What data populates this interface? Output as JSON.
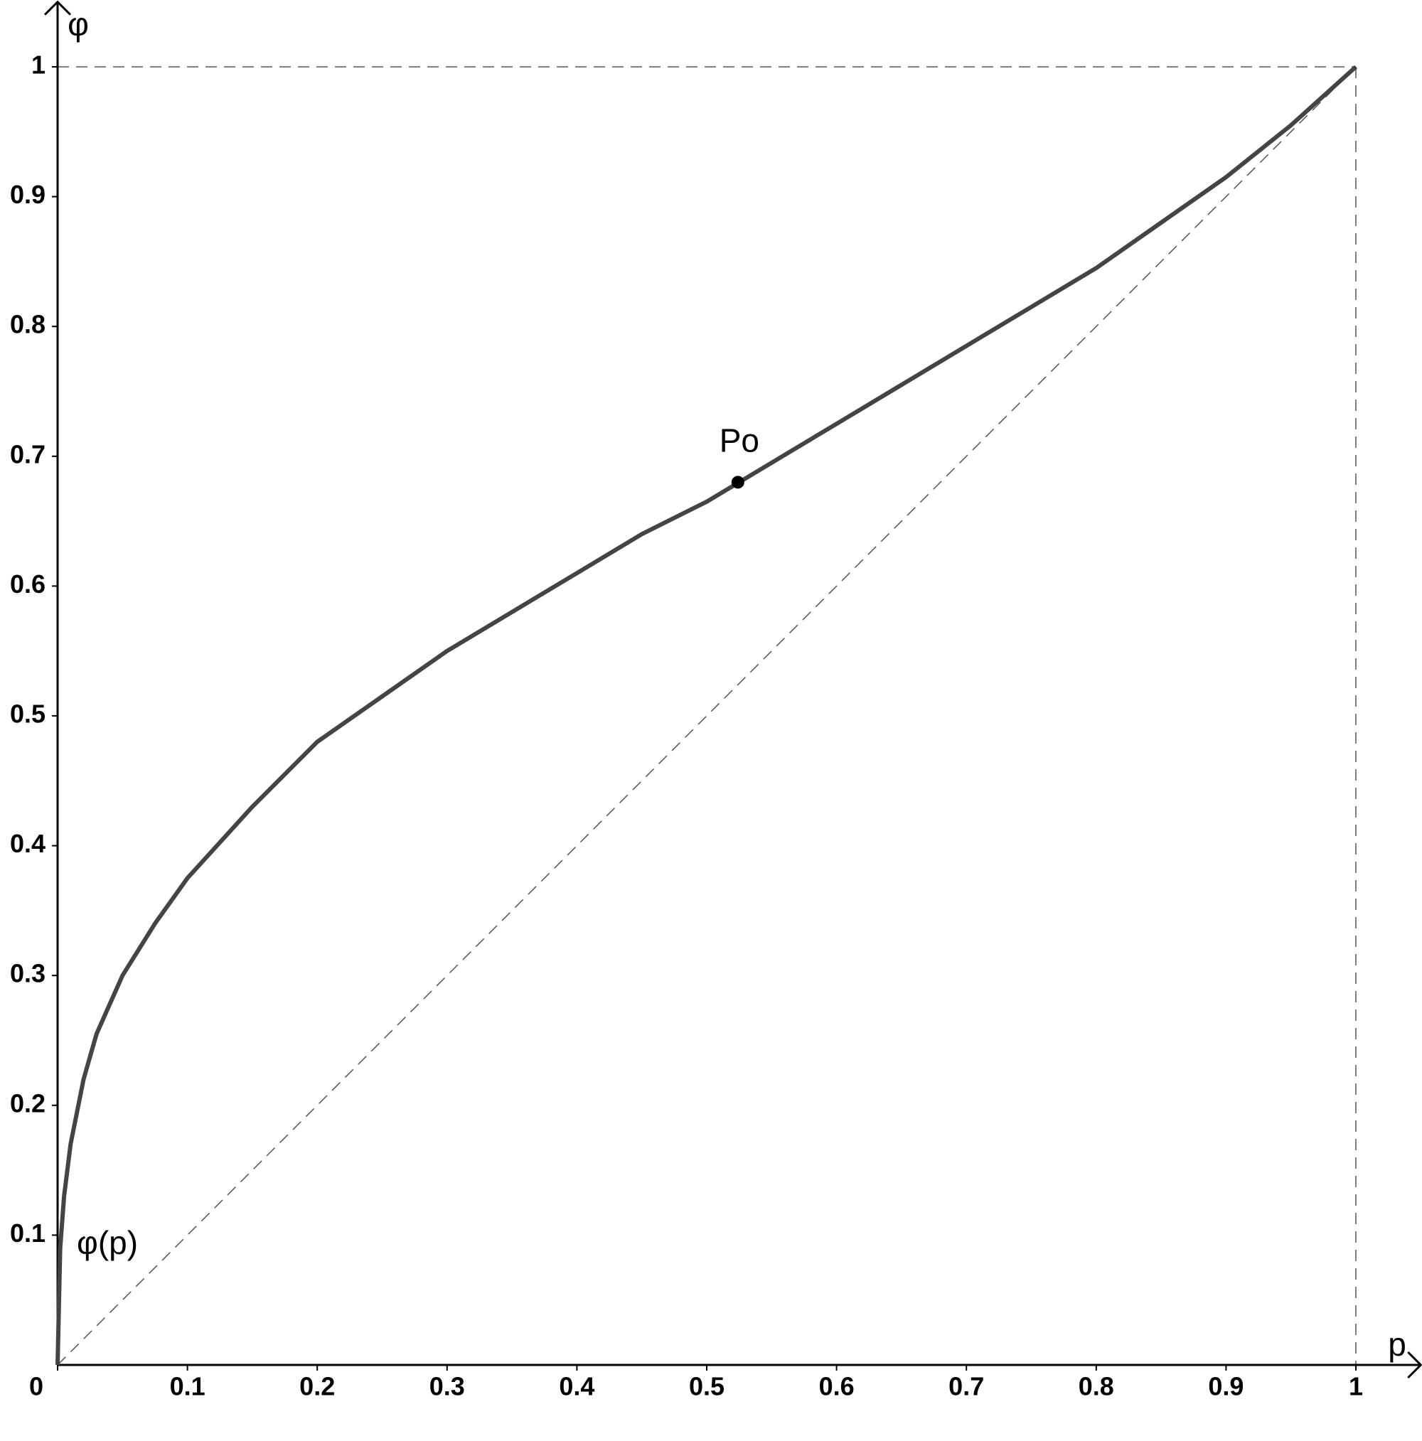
{
  "chart_data": {
    "type": "line",
    "x_label": "p",
    "y_label": "φ",
    "xlim": [
      0,
      1.05
    ],
    "ylim": [
      0,
      1.05
    ],
    "xticks": [
      0,
      0.1,
      0.2,
      0.3,
      0.4,
      0.5,
      0.6,
      0.7,
      0.8,
      0.9,
      1
    ],
    "yticks": [
      0.1,
      0.2,
      0.3,
      0.4,
      0.5,
      0.6,
      0.7,
      0.8,
      0.9,
      1
    ],
    "series": [
      {
        "name": "φ(p)",
        "color": "#444444",
        "x": [
          0,
          0.002,
          0.005,
          0.01,
          0.02,
          0.03,
          0.05,
          0.075,
          0.1,
          0.15,
          0.2,
          0.25,
          0.3,
          0.35,
          0.4,
          0.45,
          0.5,
          0.55,
          0.6,
          0.65,
          0.7,
          0.75,
          0.8,
          0.85,
          0.9,
          0.95,
          1
        ],
        "values": [
          0,
          0.09,
          0.13,
          0.17,
          0.22,
          0.255,
          0.3,
          0.34,
          0.375,
          0.43,
          0.48,
          0.515,
          0.55,
          0.58,
          0.61,
          0.64,
          0.665,
          0.695,
          0.725,
          0.755,
          0.785,
          0.815,
          0.845,
          0.88,
          0.915,
          0.955,
          1
        ]
      }
    ],
    "reference_line": {
      "x": [
        0,
        1
      ],
      "values": [
        0,
        1
      ]
    },
    "hlines": [
      1
    ],
    "vlines": [
      1
    ],
    "points": [
      {
        "label": "Po",
        "x": 0.524,
        "y": 0.68
      }
    ]
  }
}
